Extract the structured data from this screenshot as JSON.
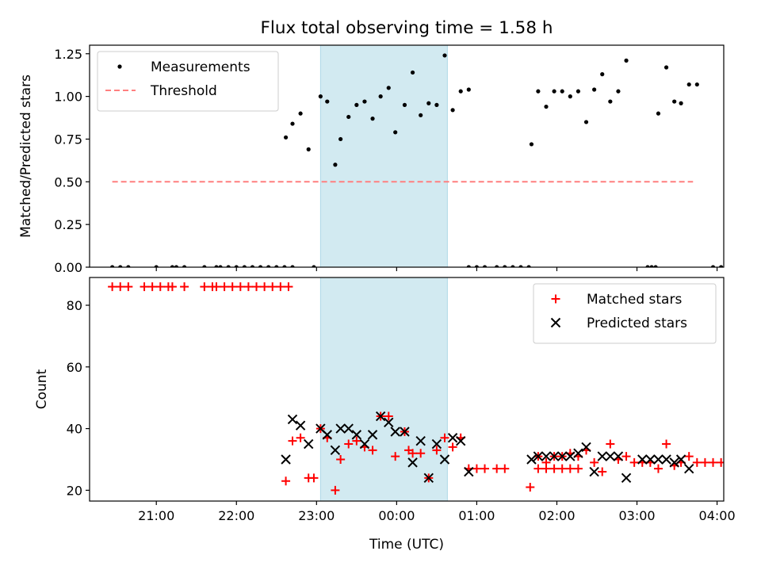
{
  "chart_data": {
    "type": "scatter",
    "title": "Flux total observing time = 1.58 h",
    "shared_x": {
      "label": "Time (UTC)",
      "ticks": [
        "21:00",
        "22:00",
        "23:00",
        "00:00",
        "01:00",
        "02:00",
        "03:00",
        "04:00"
      ],
      "range": [
        "20:10",
        "04:05"
      ]
    },
    "shaded_interval": {
      "start": "23:03",
      "end": "00:38",
      "color": "#add8e6"
    },
    "top": {
      "ylabel": "Matched/Predicted stars",
      "ylim": [
        0,
        1.3
      ],
      "yticks": [
        "0.00",
        "0.25",
        "0.50",
        "0.75",
        "1.00",
        "1.25"
      ],
      "legend_position": "upper-left",
      "series": [
        {
          "name": "Measurements",
          "marker": "dot",
          "color": "#000000",
          "points": [
            [
              "20:27",
              0
            ],
            [
              "20:33",
              0
            ],
            [
              "20:39",
              0
            ],
            [
              "21:00",
              0
            ],
            [
              "21:12",
              0
            ],
            [
              "21:15",
              0
            ],
            [
              "21:21",
              0
            ],
            [
              "21:36",
              0
            ],
            [
              "21:45",
              0
            ],
            [
              "21:48",
              0
            ],
            [
              "21:54",
              0
            ],
            [
              "22:00",
              0
            ],
            [
              "22:06",
              0
            ],
            [
              "22:12",
              0
            ],
            [
              "22:18",
              0
            ],
            [
              "22:24",
              0
            ],
            [
              "22:30",
              0
            ],
            [
              "22:36",
              0
            ],
            [
              "22:42",
              0
            ],
            [
              "22:58",
              0
            ],
            [
              "22:37",
              0.76
            ],
            [
              "22:42",
              0.84
            ],
            [
              "22:48",
              0.9
            ],
            [
              "22:54",
              0.69
            ],
            [
              "23:03",
              1.0
            ],
            [
              "23:08",
              0.97
            ],
            [
              "23:14",
              0.6
            ],
            [
              "23:18",
              0.75
            ],
            [
              "23:24",
              0.88
            ],
            [
              "23:30",
              0.95
            ],
            [
              "23:36",
              0.97
            ],
            [
              "23:42",
              0.87
            ],
            [
              "23:48",
              1.0
            ],
            [
              "23:54",
              1.05
            ],
            [
              "23:59",
              0.79
            ],
            [
              "00:06",
              0.95
            ],
            [
              "00:12",
              1.14
            ],
            [
              "00:18",
              0.89
            ],
            [
              "00:24",
              0.96
            ],
            [
              "00:30",
              0.95
            ],
            [
              "00:36",
              1.24
            ],
            [
              "00:42",
              0.92
            ],
            [
              "00:48",
              1.03
            ],
            [
              "00:54",
              1.04
            ],
            [
              "00:54",
              0
            ],
            [
              "01:00",
              0
            ],
            [
              "01:06",
              0
            ],
            [
              "01:15",
              0
            ],
            [
              "01:21",
              0
            ],
            [
              "01:27",
              0
            ],
            [
              "01:33",
              0
            ],
            [
              "01:39",
              0
            ],
            [
              "01:41",
              0.72
            ],
            [
              "01:46",
              1.03
            ],
            [
              "01:52",
              0.94
            ],
            [
              "01:58",
              1.03
            ],
            [
              "02:04",
              1.03
            ],
            [
              "02:10",
              1.0
            ],
            [
              "02:16",
              1.03
            ],
            [
              "02:22",
              0.85
            ],
            [
              "02:28",
              1.04
            ],
            [
              "02:34",
              1.13
            ],
            [
              "02:40",
              0.97
            ],
            [
              "02:46",
              1.03
            ],
            [
              "02:52",
              1.21
            ],
            [
              "03:08",
              0
            ],
            [
              "03:11",
              0
            ],
            [
              "03:14",
              0
            ],
            [
              "03:16",
              0.9
            ],
            [
              "03:22",
              1.17
            ],
            [
              "03:28",
              0.97
            ],
            [
              "03:33",
              0.96
            ],
            [
              "03:39",
              1.07
            ],
            [
              "03:45",
              1.07
            ],
            [
              "03:57",
              0
            ],
            [
              "04:03",
              0
            ],
            [
              "04:09",
              0
            ]
          ]
        },
        {
          "name": "Threshold",
          "style": "dashed",
          "color": "#ff7f7f",
          "x": [
            "20:27",
            "03:42"
          ],
          "y": [
            0.5,
            0.5
          ]
        }
      ]
    },
    "bottom": {
      "ylabel": "Count",
      "ylim": [
        16.5,
        89
      ],
      "yticks": [
        "20",
        "40",
        "60",
        "80"
      ],
      "legend_position": "upper-right",
      "series": [
        {
          "name": "Matched stars",
          "marker": "plus",
          "color": "#ff0000",
          "points": [
            [
              "20:27",
              86
            ],
            [
              "20:33",
              86
            ],
            [
              "20:39",
              86
            ],
            [
              "20:51",
              86
            ],
            [
              "20:57",
              86
            ],
            [
              "21:03",
              86
            ],
            [
              "21:09",
              86
            ],
            [
              "21:12",
              86
            ],
            [
              "21:21",
              86
            ],
            [
              "21:36",
              86
            ],
            [
              "21:42",
              86
            ],
            [
              "21:45",
              86
            ],
            [
              "21:51",
              86
            ],
            [
              "21:57",
              86
            ],
            [
              "22:03",
              86
            ],
            [
              "22:09",
              86
            ],
            [
              "22:15",
              86
            ],
            [
              "22:21",
              86
            ],
            [
              "22:27",
              86
            ],
            [
              "22:33",
              86
            ],
            [
              "22:39",
              86
            ],
            [
              "22:37",
              23
            ],
            [
              "22:42",
              36
            ],
            [
              "22:48",
              37
            ],
            [
              "22:54",
              24
            ],
            [
              "22:58",
              24
            ],
            [
              "23:03",
              40
            ],
            [
              "23:08",
              37
            ],
            [
              "23:14",
              20
            ],
            [
              "23:18",
              30
            ],
            [
              "23:24",
              35
            ],
            [
              "23:30",
              36
            ],
            [
              "23:36",
              34
            ],
            [
              "23:42",
              33
            ],
            [
              "23:48",
              44
            ],
            [
              "23:54",
              44
            ],
            [
              "23:59",
              31
            ],
            [
              "00:06",
              39
            ],
            [
              "00:09",
              33
            ],
            [
              "00:12",
              32
            ],
            [
              "00:18",
              32
            ],
            [
              "00:24",
              24
            ],
            [
              "00:30",
              33
            ],
            [
              "00:36",
              37
            ],
            [
              "00:42",
              34
            ],
            [
              "00:48",
              37
            ],
            [
              "00:54",
              27
            ],
            [
              "01:00",
              27
            ],
            [
              "01:06",
              27
            ],
            [
              "01:15",
              27
            ],
            [
              "01:21",
              27
            ],
            [
              "01:46",
              27
            ],
            [
              "01:52",
              27
            ],
            [
              "01:58",
              27
            ],
            [
              "02:04",
              27
            ],
            [
              "02:10",
              27
            ],
            [
              "02:16",
              27
            ],
            [
              "01:40",
              21
            ],
            [
              "01:46",
              31
            ],
            [
              "01:52",
              29
            ],
            [
              "01:58",
              31
            ],
            [
              "02:04",
              31
            ],
            [
              "02:10",
              32
            ],
            [
              "02:16",
              31
            ],
            [
              "02:22",
              33
            ],
            [
              "02:28",
              29
            ],
            [
              "02:34",
              26
            ],
            [
              "02:40",
              35
            ],
            [
              "02:46",
              30
            ],
            [
              "02:52",
              31
            ],
            [
              "02:58",
              29
            ],
            [
              "03:04",
              29
            ],
            [
              "03:10",
              29
            ],
            [
              "03:16",
              27
            ],
            [
              "03:22",
              35
            ],
            [
              "03:28",
              28
            ],
            [
              "03:33",
              29
            ],
            [
              "03:39",
              31
            ],
            [
              "03:45",
              29
            ],
            [
              "03:51",
              29
            ],
            [
              "03:57",
              29
            ],
            [
              "04:03",
              29
            ]
          ]
        },
        {
          "name": "Predicted stars",
          "marker": "x",
          "color": "#000000",
          "points": [
            [
              "22:37",
              30
            ],
            [
              "22:42",
              43
            ],
            [
              "22:48",
              41
            ],
            [
              "22:54",
              35
            ],
            [
              "23:03",
              40
            ],
            [
              "23:08",
              38
            ],
            [
              "23:14",
              33
            ],
            [
              "23:18",
              40
            ],
            [
              "23:24",
              40
            ],
            [
              "23:30",
              38
            ],
            [
              "23:36",
              35
            ],
            [
              "23:42",
              38
            ],
            [
              "23:48",
              44
            ],
            [
              "23:54",
              42
            ],
            [
              "23:59",
              39
            ],
            [
              "00:06",
              39
            ],
            [
              "00:12",
              29
            ],
            [
              "00:18",
              36
            ],
            [
              "00:24",
              24
            ],
            [
              "00:30",
              35
            ],
            [
              "00:36",
              30
            ],
            [
              "00:42",
              37
            ],
            [
              "00:48",
              36
            ],
            [
              "00:54",
              26
            ],
            [
              "01:41",
              30
            ],
            [
              "01:46",
              31
            ],
            [
              "01:52",
              31
            ],
            [
              "01:58",
              31
            ],
            [
              "02:04",
              31
            ],
            [
              "02:10",
              31
            ],
            [
              "02:16",
              32
            ],
            [
              "02:22",
              34
            ],
            [
              "02:28",
              26
            ],
            [
              "02:34",
              31
            ],
            [
              "02:40",
              31
            ],
            [
              "02:46",
              31
            ],
            [
              "02:52",
              24
            ],
            [
              "03:04",
              30
            ],
            [
              "03:10",
              30
            ],
            [
              "03:16",
              30
            ],
            [
              "03:22",
              30
            ],
            [
              "03:28",
              29
            ],
            [
              "03:33",
              30
            ],
            [
              "03:39",
              27
            ]
          ]
        }
      ]
    }
  }
}
